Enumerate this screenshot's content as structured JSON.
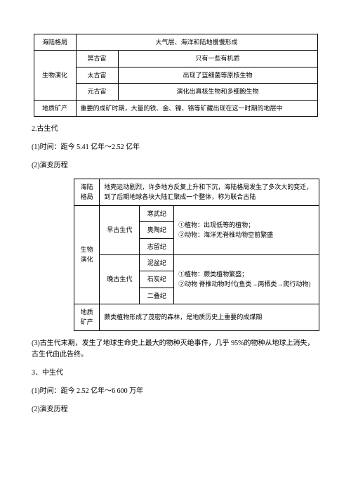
{
  "table1": {
    "r1c1": "海陆格局",
    "r1c2": "大气层、海洋和陆地慢慢形成",
    "r2c1": "生物演化",
    "r2c2": "冥古宙",
    "r2c3": "只有一些有机质",
    "r3c2": "太古宙",
    "r3c3": "出现了蓝细菌等原核生物",
    "r4c2": "元古宙",
    "r4c3": "演化出真核生物和多细胞生物",
    "r5c1": "地质矿产",
    "r5c2": "重要的成矿时期，大量的铁、金、镍、铬等矿藏出现在这一时期的地层中"
  },
  "p1": "2.古生代",
  "p2": "(1)时间：距今 5.41 亿年～2.52 亿年",
  "p3": "(2)演变历程",
  "table2": {
    "r1c1": "海陆格局",
    "r1c2": "地壳运动剧烈，许多地方反复上升和下沉，海陆格局发生了多次大的变迁，到了后期地球各块大陆汇聚成一个整体，称为联合古陆",
    "r2c1": "生物演化",
    "r2c2": "早古生代",
    "r2c3a": "寒武纪",
    "r2c3b": "奥陶纪",
    "r2c3c": "志留纪",
    "r2c4a": "①植物：出现低等的植物；",
    "r2c4b": "②动物：海洋无脊椎动物空前繁盛",
    "r3c2": "晚古生代",
    "r3c3a": "泥盆纪",
    "r3c3b": "石炭纪",
    "r3c3c": "二叠纪",
    "r3c4a": "①植物：蕨类植物繁盛；",
    "r3c4b": "②动物 脊椎动物时代(鱼类→两栖类→爬行动物)",
    "r4c1": "地质矿产",
    "r4c2": "蕨类植物形成了茂密的森林，是地质历史上重要的成煤期"
  },
  "p4": "(3)古生代末期，发生了地球生命史上最大的物种灭绝事件，几乎 95%的物种从地球上消失，古生代由此告终。",
  "p5": "3．中生代",
  "p6": "(1)时间：距今 2.52 亿年～6 600 万年",
  "p7": "(2)演变历程"
}
